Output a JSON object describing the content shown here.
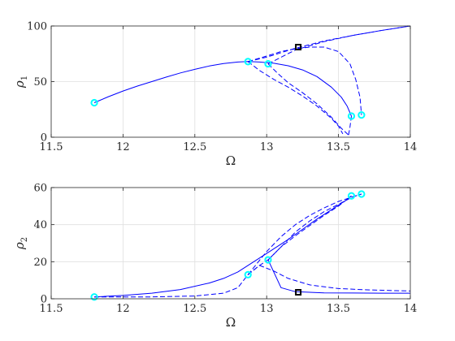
{
  "chart_data": [
    {
      "type": "line",
      "xlabel": "Ω",
      "ylabel": "ρ",
      "ylabel_sub": "1",
      "xlim": [
        11.5,
        14
      ],
      "ylim": [
        0,
        100
      ],
      "xticks": [
        11.5,
        12,
        12.5,
        13,
        13.5,
        14
      ],
      "yticks": [
        0,
        50,
        100
      ],
      "xtick_labels": [
        "11.5",
        "12",
        "12.5",
        "13",
        "13.5",
        "14"
      ],
      "ytick_labels": [
        "0",
        "50",
        "100"
      ],
      "grid": true,
      "series": [
        {
          "style": "solid",
          "color": "#0000ff",
          "x": [
            11.8,
            11.9,
            12.0,
            12.1,
            12.2,
            12.3,
            12.4,
            12.5,
            12.6,
            12.7,
            12.8,
            12.87,
            12.95,
            13.05,
            13.15,
            13.25,
            13.35,
            13.45,
            13.52,
            13.56,
            13.59
          ],
          "y": [
            31,
            36.5,
            41.5,
            46,
            50,
            54,
            57.8,
            61,
            64,
            66.2,
            67.6,
            68,
            67.6,
            66.5,
            64.2,
            60.5,
            54.5,
            45,
            36,
            28,
            19
          ]
        },
        {
          "style": "dashed",
          "color": "#0000ff",
          "x": [
            12.87,
            13.0,
            13.1,
            13.2,
            13.3,
            13.4,
            13.5,
            13.58,
            13.62,
            13.65,
            13.66
          ],
          "y": [
            68,
            73,
            77,
            79.5,
            81,
            81,
            77,
            66,
            52,
            36,
            20
          ]
        },
        {
          "style": "dashed",
          "color": "#0000ff",
          "x": [
            12.87,
            13.0,
            13.2,
            13.4,
            13.6,
            13.8,
            14.0
          ],
          "y": [
            68,
            72,
            80,
            86.5,
            91.5,
            96,
            100
          ]
        },
        {
          "style": "dashed",
          "color": "#0000ff",
          "x": [
            13.01,
            13.2,
            13.4,
            13.6,
            13.8,
            14.0
          ],
          "y": [
            66,
            78.5,
            86,
            91.5,
            96,
            100
          ]
        },
        {
          "style": "dashed",
          "color": "#0000ff",
          "x": [
            12.87,
            12.95,
            13.05,
            13.15,
            13.25,
            13.35,
            13.45,
            13.5,
            13.53
          ],
          "y": [
            68,
            60,
            52,
            45,
            37,
            28,
            17,
            10,
            3
          ]
        },
        {
          "style": "dashed",
          "color": "#0000ff",
          "x": [
            13.01,
            13.08,
            13.15,
            13.25,
            13.35,
            13.45,
            13.52,
            13.57
          ],
          "y": [
            66,
            57,
            49,
            40,
            30,
            18,
            8,
            2
          ]
        },
        {
          "style": "dashed",
          "color": "#0000ff",
          "x": [
            13.57,
            13.58,
            13.59
          ],
          "y": [
            2,
            9,
            19
          ]
        }
      ],
      "markers": [
        {
          "x": 11.8,
          "y": 31,
          "shape": "circle",
          "color": "#00ffff"
        },
        {
          "x": 12.87,
          "y": 68,
          "shape": "circle",
          "color": "#00ffff"
        },
        {
          "x": 13.01,
          "y": 66,
          "shape": "circle",
          "color": "#00ffff"
        },
        {
          "x": 13.59,
          "y": 19,
          "shape": "circle",
          "color": "#00ffff"
        },
        {
          "x": 13.66,
          "y": 20,
          "shape": "circle",
          "color": "#00ffff"
        },
        {
          "x": 13.22,
          "y": 81,
          "shape": "square",
          "color": "#000000"
        }
      ]
    },
    {
      "type": "line",
      "xlabel": "Ω",
      "ylabel": "ρ",
      "ylabel_sub": "2",
      "xlim": [
        11.5,
        14
      ],
      "ylim": [
        0,
        60
      ],
      "xticks": [
        11.5,
        12,
        12.5,
        13,
        13.5,
        14
      ],
      "yticks": [
        0,
        20,
        40,
        60
      ],
      "xtick_labels": [
        "11.5",
        "12",
        "12.5",
        "13",
        "13.5",
        "14"
      ],
      "ytick_labels": [
        "0",
        "20",
        "40",
        "60"
      ],
      "grid": true,
      "series": [
        {
          "style": "solid",
          "color": "#0000ff",
          "x": [
            11.8,
            12.0,
            12.2,
            12.4,
            12.6,
            12.7,
            12.8,
            12.87,
            12.95,
            13.05,
            13.15,
            13.25,
            13.35,
            13.45,
            13.55,
            13.59
          ],
          "y": [
            1,
            1.8,
            3,
            5,
            8.5,
            11,
            14.5,
            18,
            22,
            27,
            32,
            37.5,
            43,
            48,
            53,
            55.5
          ]
        },
        {
          "style": "dashed",
          "color": "#0000ff",
          "x": [
            11.8,
            12.2,
            12.5,
            12.7,
            12.8,
            12.87,
            12.95,
            13.01,
            13.1,
            13.2,
            13.3,
            13.4,
            13.5,
            13.6,
            13.66
          ],
          "y": [
            1,
            1,
            1.5,
            3,
            6,
            13,
            18,
            21,
            28,
            36,
            42,
            47,
            51,
            55,
            56.5
          ]
        },
        {
          "style": "dashed",
          "color": "#0000ff",
          "x": [
            12.87,
            13.0,
            13.1,
            13.2,
            13.3,
            13.4,
            13.5,
            13.6,
            13.66
          ],
          "y": [
            13,
            25.5,
            33.5,
            40,
            45,
            49,
            52.5,
            55,
            56.5
          ]
        },
        {
          "style": "dashed",
          "color": "#0000ff",
          "x": [
            13.01,
            13.1,
            13.2,
            13.3,
            13.4,
            13.5,
            13.59
          ],
          "y": [
            21,
            28,
            34,
            39.5,
            45,
            50,
            55.5
          ]
        },
        {
          "style": "solid",
          "color": "#0000ff",
          "x": [
            13.01,
            13.1,
            13.2,
            13.4,
            13.6,
            13.8,
            14.0
          ],
          "y": [
            21,
            6,
            3.8,
            3.2,
            3.1,
            3.0,
            3.0
          ]
        },
        {
          "style": "dashed",
          "color": "#0000ff",
          "x": [
            12.87,
            12.95,
            13.05,
            13.15,
            13.3,
            13.5,
            13.7,
            13.9,
            14.0
          ],
          "y": [
            13,
            18,
            15,
            11,
            7.5,
            5.5,
            4.8,
            4.4,
            4.2
          ]
        }
      ],
      "markers": [
        {
          "x": 11.8,
          "y": 1,
          "shape": "circle",
          "color": "#00ffff"
        },
        {
          "x": 12.87,
          "y": 13,
          "shape": "circle",
          "color": "#00ffff"
        },
        {
          "x": 13.01,
          "y": 21,
          "shape": "circle",
          "color": "#00ffff"
        },
        {
          "x": 13.59,
          "y": 55.5,
          "shape": "circle",
          "color": "#00ffff"
        },
        {
          "x": 13.66,
          "y": 56.5,
          "shape": "circle",
          "color": "#00ffff"
        },
        {
          "x": 13.22,
          "y": 3.5,
          "shape": "square",
          "color": "#000000"
        }
      ]
    }
  ]
}
